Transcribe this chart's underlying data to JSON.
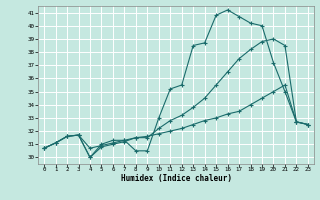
{
  "xlabel": "Humidex (Indice chaleur)",
  "bg_color": "#c5e8e0",
  "grid_color": "#b0d8d0",
  "line_color": "#1a6b6b",
  "xlim": [
    -0.5,
    23.5
  ],
  "ylim": [
    29.5,
    41.5
  ],
  "xticks": [
    0,
    1,
    2,
    3,
    4,
    5,
    6,
    7,
    8,
    9,
    10,
    11,
    12,
    13,
    14,
    15,
    16,
    17,
    18,
    19,
    20,
    21,
    22,
    23
  ],
  "yticks": [
    30,
    31,
    32,
    33,
    34,
    35,
    36,
    37,
    38,
    39,
    40,
    41
  ],
  "line1": [
    30.7,
    31.1,
    31.6,
    31.7,
    30.0,
    31.0,
    31.3,
    31.3,
    30.5,
    30.5,
    33.0,
    35.2,
    35.5,
    38.5,
    38.7,
    40.8,
    41.2,
    40.7,
    40.2,
    40.0,
    37.2,
    35.0,
    32.7,
    32.5
  ],
  "line2": [
    30.7,
    31.1,
    31.6,
    31.7,
    30.0,
    30.8,
    31.0,
    31.2,
    31.5,
    31.5,
    32.2,
    32.8,
    33.2,
    33.8,
    34.5,
    35.5,
    36.5,
    37.5,
    38.2,
    38.8,
    39.0,
    38.5,
    32.7,
    32.5
  ],
  "line3": [
    30.7,
    31.1,
    31.6,
    31.7,
    30.7,
    30.9,
    31.1,
    31.3,
    31.5,
    31.6,
    31.8,
    32.0,
    32.2,
    32.5,
    32.8,
    33.0,
    33.3,
    33.5,
    34.0,
    34.5,
    35.0,
    35.5,
    32.7,
    32.5
  ]
}
